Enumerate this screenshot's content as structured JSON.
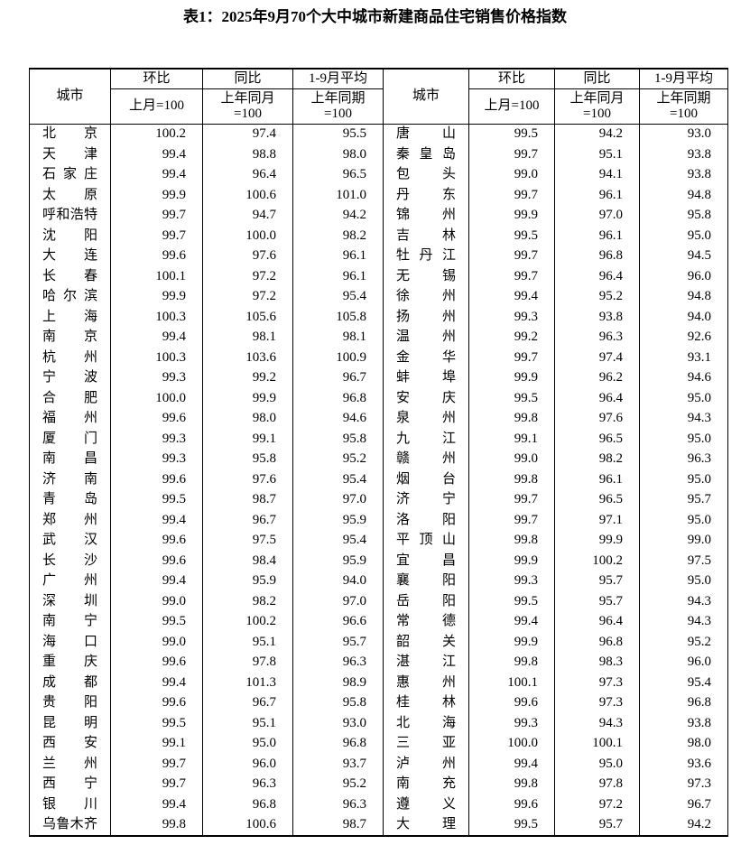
{
  "title": "表1：2025年9月70个大中城市新建商品住宅销售价格指数",
  "header": {
    "city": "城市",
    "hb": "环比",
    "tb": "同比",
    "avg": "1-9月平均",
    "hb_sub": [
      "上月=100"
    ],
    "tb_sub": [
      "上年同月",
      "=100"
    ],
    "avg_sub": [
      "上年同期",
      "=100"
    ]
  },
  "table": {
    "rows": [
      [
        "北京",
        "100.2",
        "97.4",
        "95.5",
        "唐山",
        "99.5",
        "94.2",
        "93.0"
      ],
      [
        "天津",
        "99.4",
        "98.8",
        "98.0",
        "秦皇岛",
        "99.7",
        "95.1",
        "93.8"
      ],
      [
        "石家庄",
        "99.4",
        "96.4",
        "96.5",
        "包头",
        "99.0",
        "94.1",
        "93.8"
      ],
      [
        "太原",
        "99.9",
        "100.6",
        "101.0",
        "丹东",
        "99.7",
        "96.1",
        "94.8"
      ],
      [
        "呼和浩特",
        "99.7",
        "94.7",
        "94.2",
        "锦州",
        "99.9",
        "97.0",
        "95.8"
      ],
      [
        "沈阳",
        "99.7",
        "100.0",
        "98.2",
        "吉林",
        "99.5",
        "96.1",
        "95.0"
      ],
      [
        "大连",
        "99.6",
        "97.6",
        "96.1",
        "牡丹江",
        "99.7",
        "96.8",
        "94.5"
      ],
      [
        "长春",
        "100.1",
        "97.2",
        "96.1",
        "无锡",
        "99.7",
        "96.4",
        "96.0"
      ],
      [
        "哈尔滨",
        "99.9",
        "97.2",
        "95.4",
        "徐州",
        "99.4",
        "95.2",
        "94.8"
      ],
      [
        "上海",
        "100.3",
        "105.6",
        "105.8",
        "扬州",
        "99.3",
        "93.8",
        "94.0"
      ],
      [
        "南京",
        "99.4",
        "98.1",
        "98.1",
        "温州",
        "99.2",
        "96.3",
        "92.6"
      ],
      [
        "杭州",
        "100.3",
        "103.6",
        "100.9",
        "金华",
        "99.7",
        "97.4",
        "93.1"
      ],
      [
        "宁波",
        "99.3",
        "99.2",
        "96.7",
        "蚌埠",
        "99.9",
        "96.2",
        "94.6"
      ],
      [
        "合肥",
        "100.0",
        "99.9",
        "96.8",
        "安庆",
        "99.5",
        "96.4",
        "95.0"
      ],
      [
        "福州",
        "99.6",
        "98.0",
        "94.6",
        "泉州",
        "99.8",
        "97.6",
        "94.3"
      ],
      [
        "厦门",
        "99.3",
        "99.1",
        "95.8",
        "九江",
        "99.1",
        "96.5",
        "95.0"
      ],
      [
        "南昌",
        "99.3",
        "95.8",
        "95.2",
        "赣州",
        "99.0",
        "98.2",
        "96.3"
      ],
      [
        "济南",
        "99.6",
        "97.6",
        "95.4",
        "烟台",
        "99.8",
        "96.1",
        "95.0"
      ],
      [
        "青岛",
        "99.5",
        "98.7",
        "97.0",
        "济宁",
        "99.7",
        "96.5",
        "95.7"
      ],
      [
        "郑州",
        "99.4",
        "96.7",
        "95.9",
        "洛阳",
        "99.7",
        "97.1",
        "95.0"
      ],
      [
        "武汉",
        "99.6",
        "97.5",
        "95.4",
        "平顶山",
        "99.8",
        "99.9",
        "99.0"
      ],
      [
        "长沙",
        "99.6",
        "98.4",
        "95.9",
        "宜昌",
        "99.9",
        "100.2",
        "97.5"
      ],
      [
        "广州",
        "99.4",
        "95.9",
        "94.0",
        "襄阳",
        "99.3",
        "95.7",
        "95.0"
      ],
      [
        "深圳",
        "99.0",
        "98.2",
        "97.0",
        "岳阳",
        "99.5",
        "95.7",
        "94.3"
      ],
      [
        "南宁",
        "99.5",
        "100.2",
        "96.6",
        "常德",
        "99.4",
        "96.4",
        "94.3"
      ],
      [
        "海口",
        "99.0",
        "95.1",
        "95.7",
        "韶关",
        "99.9",
        "96.8",
        "95.2"
      ],
      [
        "重庆",
        "99.6",
        "97.8",
        "96.3",
        "湛江",
        "99.8",
        "98.3",
        "96.0"
      ],
      [
        "成都",
        "99.4",
        "101.3",
        "98.9",
        "惠州",
        "100.1",
        "97.3",
        "95.4"
      ],
      [
        "贵阳",
        "99.6",
        "96.7",
        "95.8",
        "桂林",
        "99.6",
        "97.3",
        "96.8"
      ],
      [
        "昆明",
        "99.5",
        "95.1",
        "93.0",
        "北海",
        "99.3",
        "94.3",
        "93.8"
      ],
      [
        "西安",
        "99.1",
        "95.0",
        "96.8",
        "三亚",
        "100.0",
        "100.1",
        "98.0"
      ],
      [
        "兰州",
        "99.7",
        "96.0",
        "93.7",
        "泸州",
        "99.4",
        "95.0",
        "93.6"
      ],
      [
        "西宁",
        "99.7",
        "96.3",
        "95.2",
        "南充",
        "99.8",
        "97.8",
        "97.3"
      ],
      [
        "银川",
        "99.4",
        "96.8",
        "96.3",
        "遵义",
        "99.6",
        "97.2",
        "96.7"
      ],
      [
        "乌鲁木齐",
        "99.8",
        "100.6",
        "98.7",
        "大理",
        "99.5",
        "95.7",
        "94.2"
      ]
    ]
  }
}
